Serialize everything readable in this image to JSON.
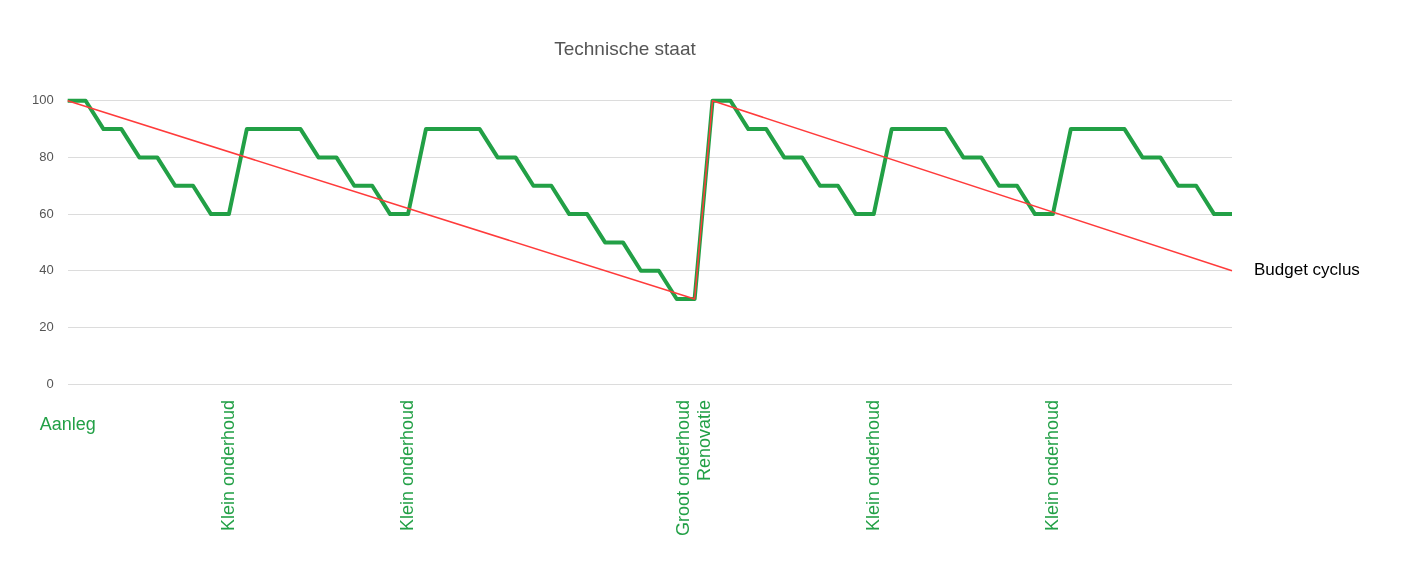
{
  "chart_data": {
    "type": "line",
    "title": "Technische staat",
    "categories": [
      null,
      null,
      null,
      null,
      null,
      null,
      null,
      null,
      null,
      null,
      null,
      null,
      null,
      null,
      null,
      null,
      null,
      null,
      null,
      null,
      null,
      null,
      null,
      null,
      null,
      null,
      null,
      null,
      null,
      null,
      null,
      null,
      null,
      null,
      null,
      null,
      null,
      null,
      null,
      null,
      null,
      null,
      null,
      null,
      null,
      null,
      null,
      null,
      null,
      null,
      null,
      null,
      null,
      null,
      null,
      null,
      null,
      null,
      null,
      null,
      null,
      null,
      null,
      null,
      null,
      null
    ],
    "ylim": [
      0,
      100
    ],
    "yticks": [
      0,
      20,
      40,
      60,
      80,
      100
    ],
    "grid": "y",
    "tick_labels": "y",
    "legend": false,
    "marker": "none",
    "series": [
      {
        "color": "#22a046",
        "values": [
          100,
          100,
          90,
          90,
          80,
          80,
          70,
          70,
          60,
          60,
          90,
          90,
          90,
          90,
          80,
          80,
          70,
          70,
          60,
          60,
          90,
          90,
          90,
          90,
          80,
          80,
          70,
          70,
          60,
          60,
          50,
          50,
          40,
          40,
          30,
          30,
          100,
          100,
          90,
          90,
          80,
          80,
          70,
          70,
          60,
          60,
          90,
          90,
          90,
          90,
          80,
          80,
          70,
          70,
          60,
          60,
          90,
          90,
          90,
          90,
          80,
          80,
          70,
          70,
          60,
          60
        ]
      },
      {
        "name": "Budget cyclus",
        "color": "#ff3b3b",
        "values": [
          100,
          null,
          null,
          null,
          null,
          null,
          null,
          null,
          null,
          null,
          null,
          null,
          null,
          null,
          null,
          null,
          null,
          null,
          null,
          null,
          null,
          null,
          null,
          null,
          null,
          null,
          null,
          null,
          null,
          null,
          null,
          null,
          null,
          null,
          null,
          30,
          100,
          null,
          null,
          null,
          null,
          null,
          null,
          null,
          null,
          null,
          null,
          null,
          null,
          null,
          null,
          null,
          null,
          null,
          null,
          null,
          null,
          null,
          null,
          null,
          null,
          null,
          null,
          null,
          null,
          40
        ]
      }
    ],
    "annotations": [
      "Aanleg",
      "Klein onderhoud",
      "Klein onderhoud",
      "Groot onderhoud\nRenovatie",
      "Klein onderhoud",
      "Klein onderhoud"
    ]
  }
}
